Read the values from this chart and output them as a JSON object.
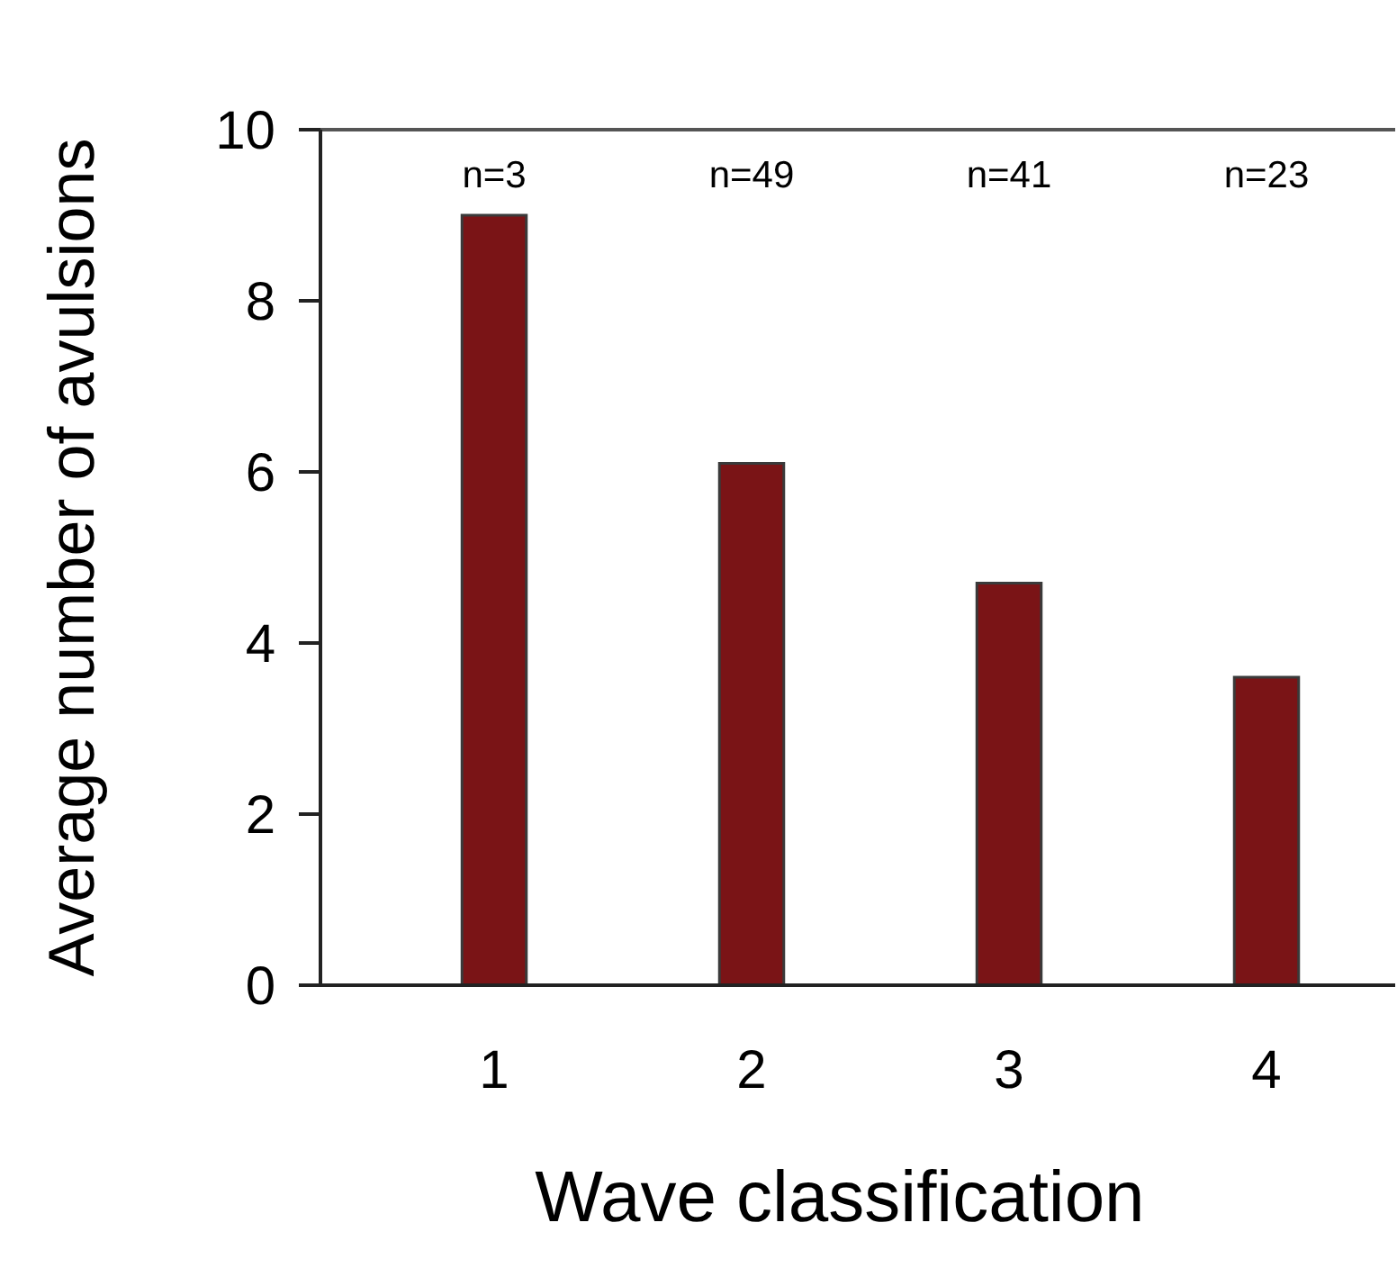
{
  "chart_data": {
    "type": "bar",
    "xlabel": "Wave classification",
    "ylabel": "Average number of avulsions",
    "categories": [
      "1",
      "2",
      "3",
      "4"
    ],
    "values": [
      9,
      6.1,
      4.7,
      3.6
    ],
    "color": "#7a1416",
    "ylim": [
      0,
      10
    ],
    "yticks": [
      0,
      2,
      4,
      6,
      8,
      10
    ],
    "grid": false,
    "annotations": [
      "n=3",
      "n=49",
      "n=41",
      "n=23"
    ]
  }
}
